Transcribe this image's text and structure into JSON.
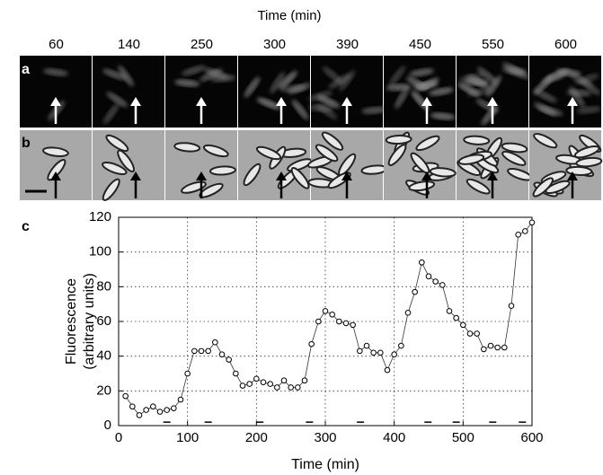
{
  "figure": {
    "header": "Time (min)",
    "times": [
      "60",
      "140",
      "250",
      "300",
      "390",
      "450",
      "550",
      "600"
    ],
    "panel_labels": [
      "a",
      "b",
      "c"
    ]
  },
  "chart_data": {
    "type": "line",
    "xlabel": "Time (min)",
    "ylabel": [
      "Fluorescence",
      "(arbitrary units)"
    ],
    "x": [
      10,
      20,
      30,
      40,
      50,
      60,
      70,
      80,
      90,
      100,
      110,
      120,
      130,
      140,
      150,
      160,
      170,
      180,
      190,
      200,
      210,
      220,
      230,
      240,
      250,
      260,
      270,
      280,
      290,
      300,
      310,
      320,
      330,
      340,
      350,
      360,
      370,
      380,
      390,
      400,
      410,
      420,
      430,
      440,
      450,
      460,
      470,
      480,
      490,
      500,
      510,
      520,
      530,
      540,
      550,
      560,
      570,
      580,
      590,
      600
    ],
    "y": [
      17,
      11,
      6,
      9,
      11,
      8,
      9,
      10,
      15,
      30,
      43,
      43,
      43,
      48,
      41,
      38,
      30,
      23,
      24,
      27,
      25,
      24,
      22,
      26,
      22,
      22,
      26,
      47,
      60,
      66,
      64,
      60,
      59,
      58,
      43,
      46,
      42,
      42,
      32,
      41,
      46,
      65,
      77,
      94,
      86,
      83,
      81,
      66,
      62,
      58,
      53,
      53,
      44,
      46,
      45,
      45,
      69,
      110,
      112,
      117
    ],
    "dashes_x": [
      70,
      130,
      205,
      277,
      351,
      449,
      490,
      543,
      586
    ],
    "dashes_y": 2,
    "color": "#333333",
    "xlim": [
      0,
      600
    ],
    "ylim": [
      0,
      120
    ],
    "xticks": [
      0,
      100,
      200,
      300,
      400,
      500,
      600
    ],
    "yticks": [
      0,
      20,
      40,
      60,
      80,
      100,
      120
    ],
    "grid": true
  }
}
